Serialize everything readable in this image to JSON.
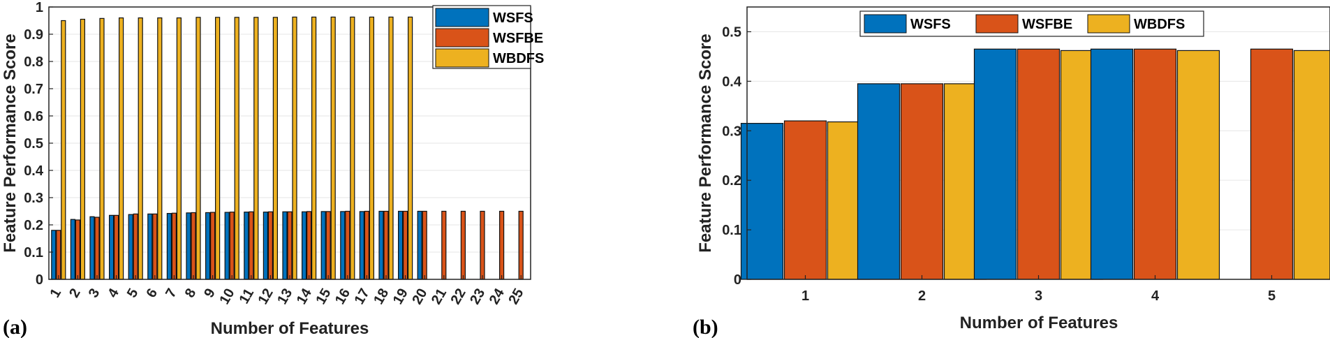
{
  "chart_data": [
    {
      "type": "bar",
      "panel_label": "(a)",
      "title": "",
      "xlabel": "Number of Features",
      "ylabel": "Feature Performance Score",
      "categories": [
        "1",
        "2",
        "3",
        "4",
        "5",
        "6",
        "7",
        "8",
        "9",
        "10",
        "11",
        "12",
        "13",
        "14",
        "15",
        "16",
        "17",
        "18",
        "19",
        "20",
        "21",
        "22",
        "23",
        "24",
        "25"
      ],
      "ylim": [
        0,
        1
      ],
      "yticks": [
        "0",
        "0.1",
        "0.2",
        "0.3",
        "0.4",
        "0.5",
        "0.6",
        "0.7",
        "0.8",
        "0.9",
        "1"
      ],
      "grid": true,
      "legend_position": "top-right, stacked",
      "series": [
        {
          "name": "WSFS",
          "color": "#0072bd",
          "values": [
            0.18,
            0.22,
            0.23,
            0.235,
            0.238,
            0.24,
            0.242,
            0.244,
            0.245,
            0.246,
            0.247,
            0.247,
            0.248,
            0.248,
            0.249,
            0.249,
            0.249,
            0.25,
            0.25,
            0.25,
            null,
            null,
            null,
            null,
            null
          ]
        },
        {
          "name": "WSFBE",
          "color": "#d95319",
          "values": [
            0.18,
            0.218,
            0.228,
            0.235,
            0.24,
            0.24,
            0.243,
            0.245,
            0.246,
            0.247,
            0.248,
            0.248,
            0.248,
            0.249,
            0.249,
            0.25,
            0.25,
            0.25,
            0.25,
            0.25,
            0.25,
            0.25,
            0.25,
            0.25,
            0.25
          ]
        },
        {
          "name": "WBDFS",
          "color": "#edb120",
          "values": [
            0.95,
            0.955,
            0.958,
            0.96,
            0.96,
            0.96,
            0.96,
            0.962,
            0.962,
            0.962,
            0.962,
            0.962,
            0.963,
            0.963,
            0.963,
            0.963,
            0.963,
            0.963,
            0.963,
            null,
            null,
            null,
            null,
            null,
            null
          ]
        }
      ]
    },
    {
      "type": "bar",
      "panel_label": "(b)",
      "title": "",
      "xlabel": "Number of Features",
      "ylabel": "Feature Performance Score",
      "categories": [
        "1",
        "2",
        "3",
        "4",
        "5"
      ],
      "ylim": [
        0,
        0.55
      ],
      "yticks": [
        "0",
        "0.1",
        "0.2",
        "0.3",
        "0.4",
        "0.5"
      ],
      "grid": true,
      "legend_position": "top-center, horizontal",
      "series": [
        {
          "name": "WSFS",
          "color": "#0072bd",
          "values": [
            0.315,
            0.395,
            0.465,
            0.465,
            null
          ]
        },
        {
          "name": "WSFBE",
          "color": "#d95319",
          "values": [
            0.32,
            0.395,
            0.465,
            0.465,
            0.465
          ]
        },
        {
          "name": "WBDFS",
          "color": "#edb120",
          "values": [
            0.318,
            0.395,
            0.462,
            0.462,
            0.462
          ]
        }
      ]
    }
  ]
}
